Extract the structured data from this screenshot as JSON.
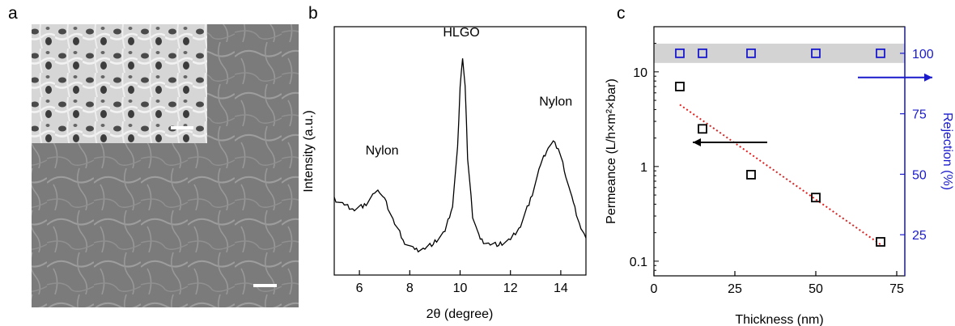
{
  "panels": {
    "a": {
      "label": "a"
    },
    "b": {
      "label": "b"
    },
    "c": {
      "label": "c"
    }
  },
  "chart_data": [
    {
      "panel": "a",
      "type": "image",
      "content": "SEM micrograph with higher-magnification inset and white scale bars"
    },
    {
      "panel": "b",
      "type": "line",
      "title": "",
      "xlabel": "2θ (degree)",
      "ylabel": "Intensity (a.u.)",
      "xlim": [
        5,
        15
      ],
      "xticks": [
        6,
        8,
        10,
        12,
        14
      ],
      "yticks": [],
      "grid": false,
      "series": [
        {
          "x": [
            5.0,
            5.4,
            5.8,
            6.2,
            6.6,
            6.8,
            7.0,
            7.4,
            7.8,
            8.2,
            8.6,
            9.0,
            9.4,
            9.7,
            9.9,
            10.0,
            10.1,
            10.2,
            10.3,
            10.5,
            10.8,
            11.2,
            11.6,
            12.0,
            12.4,
            12.8,
            13.2,
            13.5,
            13.7,
            13.9,
            14.2,
            14.5,
            14.8,
            15.0
          ],
          "y": [
            0.3,
            0.27,
            0.25,
            0.27,
            0.33,
            0.34,
            0.3,
            0.18,
            0.09,
            0.05,
            0.06,
            0.09,
            0.14,
            0.27,
            0.55,
            0.85,
            1.0,
            0.85,
            0.5,
            0.22,
            0.1,
            0.08,
            0.08,
            0.1,
            0.17,
            0.3,
            0.47,
            0.56,
            0.58,
            0.55,
            0.42,
            0.28,
            0.16,
            0.11
          ]
        }
      ],
      "annotations": [
        {
          "text": "Nylon",
          "x": 6.9,
          "y": 0.52
        },
        {
          "text": "HLGO",
          "x": 10.05,
          "y": 1.1
        },
        {
          "text": "Nylon",
          "x": 13.8,
          "y": 0.76
        }
      ]
    },
    {
      "panel": "c",
      "type": "scatter",
      "title": "",
      "xlabel": "Thickness (nm)",
      "ylabel": "Permeance (L/h×m²×bar)",
      "y2label": "Rejection (%)",
      "xlim": [
        0,
        77.5
      ],
      "ylim": [
        0.07,
        30
      ],
      "yscale": "log",
      "y2lim": [
        8,
        111
      ],
      "xticks": [
        0,
        25,
        50,
        75
      ],
      "yticks": [
        0.1,
        1,
        10
      ],
      "ytick_labels": [
        "0.1",
        "1",
        "10"
      ],
      "y2ticks": [
        25,
        50,
        75,
        100
      ],
      "grid": false,
      "colors": {
        "permeance": "#000000",
        "rejection": "#1a1acc",
        "fit": "#e02020",
        "band": "#d3d3d3",
        "y2axis": "#1a1acc"
      },
      "series": [
        {
          "axis": "left",
          "marker": "open-square",
          "x": [
            8,
            15,
            30,
            50,
            70
          ],
          "y": [
            7.0,
            2.5,
            0.82,
            0.47,
            0.16
          ]
        },
        {
          "axis": "right",
          "marker": "open-square",
          "x": [
            8,
            15,
            30,
            50,
            70
          ],
          "y": [
            100,
            100,
            100,
            100,
            100
          ]
        }
      ],
      "fit_line": {
        "style": "dotted",
        "x": [
          8,
          70
        ],
        "y": [
          4.5,
          0.15
        ]
      },
      "band": {
        "axis": "right",
        "y": [
          96,
          104
        ]
      },
      "arrows": [
        {
          "direction": "left",
          "points_to": "Permeance axis",
          "color": "#000000"
        },
        {
          "direction": "right",
          "points_to": "Rejection axis",
          "color": "#1a1acc"
        }
      ]
    }
  ]
}
